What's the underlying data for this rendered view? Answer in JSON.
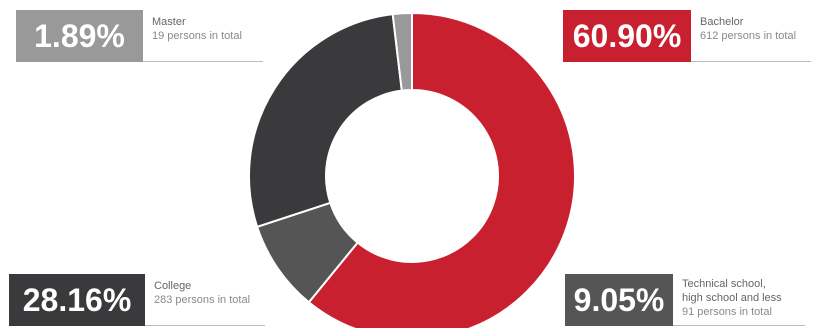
{
  "chart_data": {
    "type": "pie",
    "variant": "donut",
    "categories": [
      "Bachelor",
      "Technical school,\nhigh school and less",
      "College",
      "Master"
    ],
    "values": [
      60.9,
      9.05,
      28.16,
      1.89
    ],
    "percent_labels": [
      "60.90%",
      "9.05%",
      "28.16%",
      "1.89%"
    ],
    "counts": [
      "612 persons in total",
      "91 persons in total",
      "283 persons in total",
      "19 persons in total"
    ],
    "colors": [
      "#c8202f",
      "#555555",
      "#3a3a3c",
      "#999999"
    ],
    "slice_colors": {
      "bachelor": "#c8202f",
      "technical": "#555555",
      "college": "#3a3a3c",
      "master": "#999999"
    },
    "title": "",
    "legend": "none"
  },
  "callouts": {
    "master": {
      "pct": "1.89%",
      "label": "Master",
      "count": "19 persons in total",
      "color": "#999999"
    },
    "bachelor": {
      "pct": "60.90%",
      "label": "Bachelor",
      "count": "612 persons in total",
      "color": "#c8202f"
    },
    "college": {
      "pct": "28.16%",
      "label": "College",
      "count": "283 persons in total",
      "color": "#3a3a3c"
    },
    "technical": {
      "pct": "9.05%",
      "label": "Technical school,\nhigh school and less",
      "count": "91 persons in total",
      "color": "#555555"
    }
  }
}
